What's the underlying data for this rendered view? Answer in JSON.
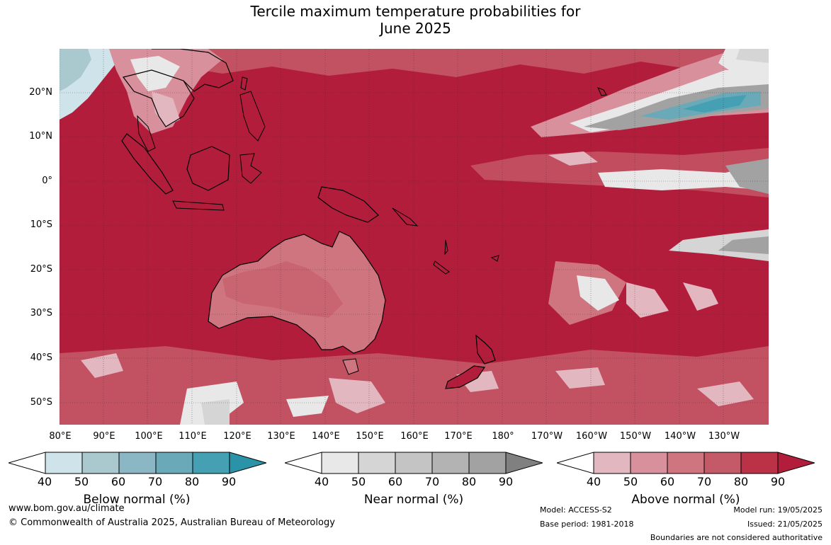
{
  "title_line1": "Tercile maximum temperature probabilities for",
  "title_line2": "June 2025",
  "lat_labels": [
    "20°N",
    "10°N",
    "0°",
    "10°S",
    "20°S",
    "30°S",
    "40°S",
    "50°S"
  ],
  "lon_labels": [
    "80°E",
    "90°E",
    "100°E",
    "110°E",
    "120°E",
    "130°E",
    "140°E",
    "150°E",
    "160°E",
    "170°E",
    "180°",
    "170°W",
    "160°W",
    "150°W",
    "140°W",
    "130°W"
  ],
  "colorbars": [
    {
      "title": "Below normal (%)",
      "ticks": [
        "40",
        "50",
        "60",
        "70",
        "80",
        "90"
      ],
      "colors": [
        "#ffffff",
        "#cfe3ea",
        "#a9c9cf",
        "#8bb7c4",
        "#6aa9b7",
        "#45a0b3",
        "#2b93a8"
      ]
    },
    {
      "title": "Near normal (%)",
      "ticks": [
        "40",
        "50",
        "60",
        "70",
        "80",
        "90"
      ],
      "colors": [
        "#ffffff",
        "#e8e8e8",
        "#d5d5d5",
        "#c4c4c4",
        "#b3b3b3",
        "#a2a2a2",
        "#808080"
      ]
    },
    {
      "title": "Above normal (%)",
      "ticks": [
        "40",
        "50",
        "60",
        "70",
        "80",
        "90"
      ],
      "colors": [
        "#ffffff",
        "#e2b7c0",
        "#d9909d",
        "#cf7580",
        "#c45a68",
        "#bb3247",
        "#b21d3c"
      ]
    }
  ],
  "footer": {
    "url": "www.bom.gov.au/climate",
    "copyright": "© Commonwealth of Australia 2025, Australian Bureau of Meteorology",
    "model": "Model: ACCESS-S2",
    "base_period": "Base period: 1981-2018",
    "model_run": "Model run: 19/05/2025",
    "issued": "Issued: 21/05/2025",
    "disclaimer": "Boundaries are not considered authoritative"
  }
}
